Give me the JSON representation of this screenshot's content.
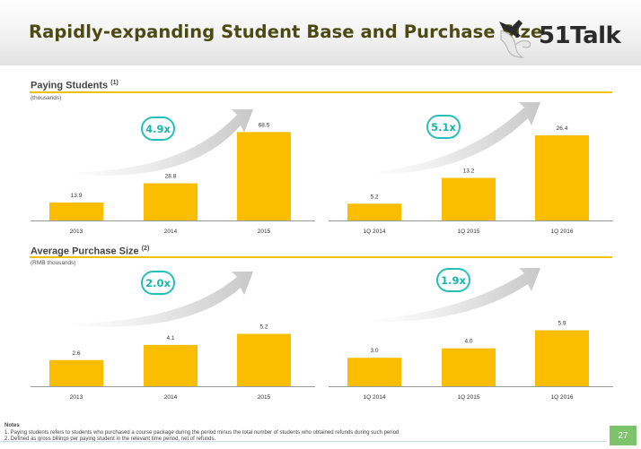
{
  "slide": {
    "title": "Rapidly-expanding Student Base and Purchase Size",
    "page_number": "27",
    "logo_text": "51Talk"
  },
  "sections": [
    {
      "title": "Paying Students",
      "footnote_ref": "(1)",
      "unit": "(thousands)"
    },
    {
      "title": "Average Purchase Size",
      "footnote_ref": "(2)",
      "unit": "(RMB thousands)"
    }
  ],
  "badges": [
    "4.9x",
    "5.1x",
    "2.0x",
    "1.9x"
  ],
  "notes": {
    "title": "Notes",
    "items": [
      "1. Paying students refers to students who purchased a course package during the period minus the total number of students who obtained refunds during such period",
      "2. Defined as gross billings per paying student in the relevant time period, net of refunds."
    ]
  },
  "colors": {
    "bar": "#fbbd00",
    "accent": "#24c0b8",
    "rule": "#f5c000",
    "title": "#4a4a12",
    "page_badge": "#7cc36b"
  },
  "chart_data": [
    {
      "type": "bar",
      "categories": [
        "2013",
        "2014",
        "2015"
      ],
      "values": [
        13.9,
        28.8,
        68.5
      ],
      "ylim": [
        0,
        75
      ],
      "data_labels": [
        "13.9",
        "28.8",
        "68.5"
      ]
    },
    {
      "type": "bar",
      "categories": [
        "1Q 2014",
        "1Q 2015",
        "1Q 2016"
      ],
      "values": [
        5.2,
        13.2,
        26.4
      ],
      "ylim": [
        0,
        30
      ],
      "data_labels": [
        "5.2",
        "13.2",
        "26.4"
      ]
    },
    {
      "type": "bar",
      "categories": [
        "2013",
        "2014",
        "2015"
      ],
      "values": [
        2.6,
        4.1,
        5.2
      ],
      "ylim": [
        0,
        9.6
      ],
      "data_labels": [
        "2.6",
        "4.1",
        "5.2"
      ]
    },
    {
      "type": "bar",
      "categories": [
        "1Q 2014",
        "1Q 2015",
        "1Q 2016"
      ],
      "values": [
        3.0,
        4.0,
        5.9
      ],
      "ylim": [
        0,
        10.2
      ],
      "data_labels": [
        "3.0",
        "4.0",
        "5.9"
      ]
    }
  ]
}
